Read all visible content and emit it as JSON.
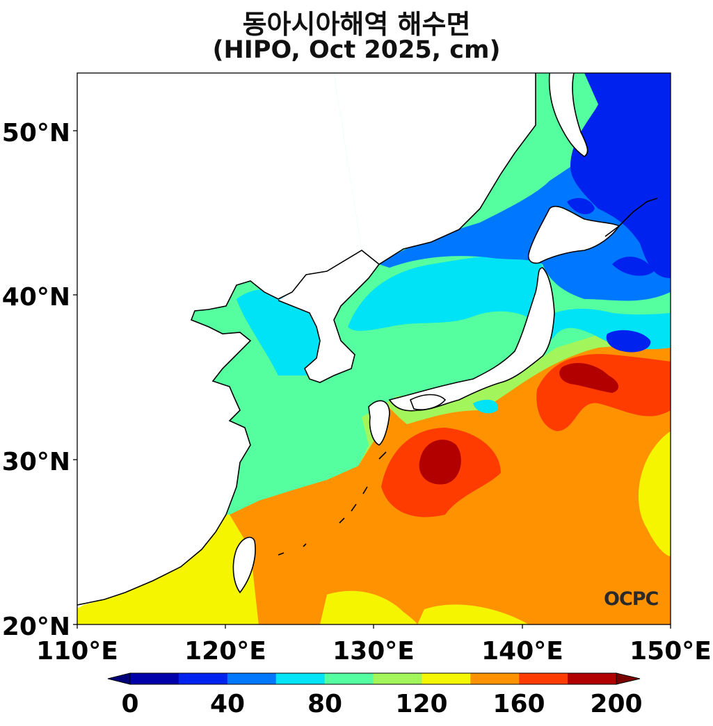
{
  "title": "동아시아해역 해수면",
  "subtitle": "(HIPO, Oct 2025, cm)",
  "watermark": "OCPC",
  "axes": {
    "x_ticks": [
      "110°E",
      "120°E",
      "130°E",
      "140°E",
      "150°E"
    ],
    "y_ticks": [
      "50°N",
      "40°N",
      "30°N",
      "20°N"
    ],
    "lon_range": [
      110,
      150
    ],
    "lat_range": [
      20,
      53.5
    ]
  },
  "colorbar": {
    "colors": [
      "#0000aa",
      "#0022ee",
      "#0077ff",
      "#00e2f5",
      "#55ffa0",
      "#a2f55a",
      "#f5f500",
      "#ff9200",
      "#ff3c00",
      "#b20000"
    ],
    "under_color": "#00007a",
    "over_color": "#7a0000",
    "labels": [
      "0",
      "40",
      "80",
      "120",
      "160",
      "200"
    ],
    "min": 0,
    "max": 200,
    "step": 20
  },
  "land_color": "#ffffff",
  "coast_color": "#000000"
}
